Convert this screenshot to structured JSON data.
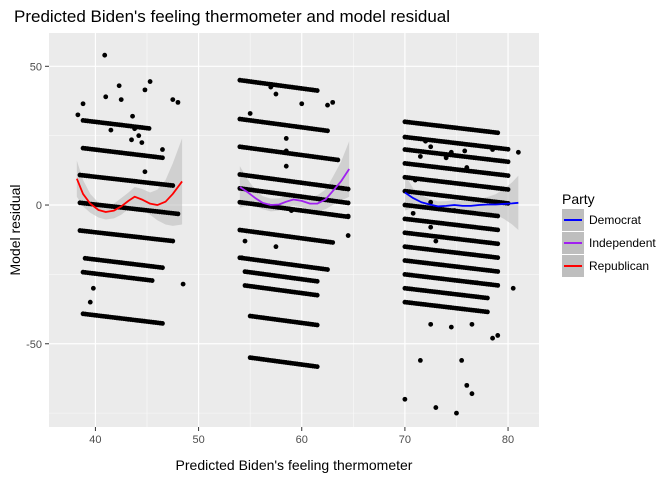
{
  "chart_data": {
    "type": "scatter",
    "title": "Predicted Biden's feeling thermometer and model residual",
    "xlabel": "Predicted Biden's feeling thermometer",
    "ylabel": "Model residual",
    "xlim": [
      35.5,
      83
    ],
    "ylim": [
      -80,
      62
    ],
    "x_ticks": [
      40,
      50,
      60,
      70,
      80
    ],
    "y_ticks": [
      -50,
      0,
      50
    ],
    "x_tick_labels": [
      "40",
      "50",
      "60",
      "70",
      "80"
    ],
    "y_tick_labels": [
      "-50",
      "0",
      "50"
    ],
    "grid": true,
    "legend": {
      "title": "Party",
      "position": "right",
      "entries": [
        {
          "name": "Democrat",
          "color": "#0000ff"
        },
        {
          "name": "Independent",
          "color": "#a020f0"
        },
        {
          "name": "Republican",
          "color": "#ff0000"
        }
      ]
    },
    "point_color": "#000000",
    "ribbon_color": "#bebebe",
    "point_bands": [
      {
        "group": "Republican",
        "x0": 38.8,
        "x1": 45.2,
        "y0": 30.5,
        "slope": -0.45
      },
      {
        "group": "Republican",
        "x0": 38.8,
        "x1": 46.5,
        "y0": 20.5,
        "slope": -0.45
      },
      {
        "group": "Republican",
        "x0": 38.5,
        "x1": 47.5,
        "y0": 10.8,
        "slope": -0.42
      },
      {
        "group": "Republican",
        "x0": 38.5,
        "x1": 48.0,
        "y0": 0.8,
        "slope": -0.42
      },
      {
        "group": "Republican",
        "x0": 38.5,
        "x1": 47.5,
        "y0": -9.2,
        "slope": -0.42
      },
      {
        "group": "Republican",
        "x0": 39.0,
        "x1": 46.5,
        "y0": -19.2,
        "slope": -0.45
      },
      {
        "group": "Republican",
        "x0": 38.8,
        "x1": 45.5,
        "y0": -24.2,
        "slope": -0.45
      },
      {
        "group": "Republican",
        "x0": 38.8,
        "x1": 46.5,
        "y0": -39.2,
        "slope": -0.45
      },
      {
        "group": "Independent",
        "x0": 54.0,
        "x1": 61.5,
        "y0": 45.0,
        "slope": -0.5
      },
      {
        "group": "Independent",
        "x0": 54.0,
        "x1": 62.5,
        "y0": 31.0,
        "slope": -0.5
      },
      {
        "group": "Independent",
        "x0": 54.0,
        "x1": 63.5,
        "y0": 21.0,
        "slope": -0.5
      },
      {
        "group": "Independent",
        "x0": 54.0,
        "x1": 64.5,
        "y0": 11.0,
        "slope": -0.5
      },
      {
        "group": "Independent",
        "x0": 54.0,
        "x1": 64.5,
        "y0": 6.0,
        "slope": -0.5
      },
      {
        "group": "Independent",
        "x0": 54.0,
        "x1": 64.5,
        "y0": 1.0,
        "slope": -0.5
      },
      {
        "group": "Independent",
        "x0": 54.0,
        "x1": 63.0,
        "y0": -9.0,
        "slope": -0.5
      },
      {
        "group": "Independent",
        "x0": 54.0,
        "x1": 62.5,
        "y0": -19.0,
        "slope": -0.5
      },
      {
        "group": "Independent",
        "x0": 54.5,
        "x1": 61.5,
        "y0": -24.0,
        "slope": -0.5
      },
      {
        "group": "Independent",
        "x0": 54.5,
        "x1": 61.5,
        "y0": -29.0,
        "slope": -0.5
      },
      {
        "group": "Independent",
        "x0": 55.0,
        "x1": 61.5,
        "y0": -40.0,
        "slope": -0.5
      },
      {
        "group": "Independent",
        "x0": 55.0,
        "x1": 61.5,
        "y0": -55.0,
        "slope": -0.5
      },
      {
        "group": "Democrat",
        "x0": 70.0,
        "x1": 79.0,
        "y0": 30.0,
        "slope": -0.44
      },
      {
        "group": "Democrat",
        "x0": 70.0,
        "x1": 80.0,
        "y0": 24.5,
        "slope": -0.44
      },
      {
        "group": "Democrat",
        "x0": 70.0,
        "x1": 80.0,
        "y0": 20.0,
        "slope": -0.44
      },
      {
        "group": "Democrat",
        "x0": 70.0,
        "x1": 80.0,
        "y0": 15.0,
        "slope": -0.44
      },
      {
        "group": "Democrat",
        "x0": 70.0,
        "x1": 80.0,
        "y0": 10.0,
        "slope": -0.44
      },
      {
        "group": "Democrat",
        "x0": 70.0,
        "x1": 80.0,
        "y0": 5.0,
        "slope": -0.44
      },
      {
        "group": "Democrat",
        "x0": 70.0,
        "x1": 79.0,
        "y0": 0.0,
        "slope": -0.44
      },
      {
        "group": "Democrat",
        "x0": 70.0,
        "x1": 79.0,
        "y0": -5.0,
        "slope": -0.44
      },
      {
        "group": "Democrat",
        "x0": 70.0,
        "x1": 79.0,
        "y0": -10.0,
        "slope": -0.44
      },
      {
        "group": "Democrat",
        "x0": 70.0,
        "x1": 79.0,
        "y0": -15.0,
        "slope": -0.44
      },
      {
        "group": "Democrat",
        "x0": 70.0,
        "x1": 79.0,
        "y0": -20.0,
        "slope": -0.44
      },
      {
        "group": "Democrat",
        "x0": 70.0,
        "x1": 79.0,
        "y0": -25.0,
        "slope": -0.44
      },
      {
        "group": "Democrat",
        "x0": 70.0,
        "x1": 78.0,
        "y0": -30.0,
        "slope": -0.44
      },
      {
        "group": "Democrat",
        "x0": 70.0,
        "x1": 78.0,
        "y0": -35.0,
        "slope": -0.44
      }
    ],
    "outliers": [
      {
        "x": 40.9,
        "y": 54
      },
      {
        "x": 38.8,
        "y": 36.5
      },
      {
        "x": 38.3,
        "y": 32.5
      },
      {
        "x": 41.5,
        "y": 27
      },
      {
        "x": 45.3,
        "y": 44.5
      },
      {
        "x": 44.8,
        "y": 41.5
      },
      {
        "x": 42.5,
        "y": 38
      },
      {
        "x": 43.6,
        "y": 32
      },
      {
        "x": 43.8,
        "y": 27.5
      },
      {
        "x": 43.5,
        "y": 23.5
      },
      {
        "x": 44.2,
        "y": 25
      },
      {
        "x": 44.5,
        "y": 22.5
      },
      {
        "x": 47.5,
        "y": 38
      },
      {
        "x": 48.0,
        "y": 37
      },
      {
        "x": 42.3,
        "y": 43
      },
      {
        "x": 41.0,
        "y": 39
      },
      {
        "x": 46.5,
        "y": 20
      },
      {
        "x": 44.8,
        "y": 12
      },
      {
        "x": 39.8,
        "y": -30
      },
      {
        "x": 39.5,
        "y": -35
      },
      {
        "x": 48.5,
        "y": -28.5
      },
      {
        "x": 54.2,
        "y": -19
      },
      {
        "x": 54.5,
        "y": -13
      },
      {
        "x": 55.0,
        "y": 33
      },
      {
        "x": 58.5,
        "y": 24
      },
      {
        "x": 58.5,
        "y": 14
      },
      {
        "x": 59.0,
        "y": -2
      },
      {
        "x": 57.5,
        "y": -15
      },
      {
        "x": 58.5,
        "y": 19.5
      },
      {
        "x": 64.0,
        "y": 6
      },
      {
        "x": 64.5,
        "y": -4
      },
      {
        "x": 64.5,
        "y": -11
      },
      {
        "x": 60.0,
        "y": 36.5
      },
      {
        "x": 62.5,
        "y": 36
      },
      {
        "x": 63.0,
        "y": 37
      },
      {
        "x": 57.0,
        "y": 42.5
      },
      {
        "x": 57.5,
        "y": 40
      },
      {
        "x": 70.0,
        "y": -70
      },
      {
        "x": 71.5,
        "y": -56
      },
      {
        "x": 73.0,
        "y": -73
      },
      {
        "x": 75.0,
        "y": -75
      },
      {
        "x": 75.5,
        "y": -56
      },
      {
        "x": 76.0,
        "y": -65
      },
      {
        "x": 76.5,
        "y": -68
      },
      {
        "x": 76.5,
        "y": -43
      },
      {
        "x": 72.5,
        "y": -43
      },
      {
        "x": 74.5,
        "y": -44
      },
      {
        "x": 71.0,
        "y": 9
      },
      {
        "x": 71.5,
        "y": 17.5
      },
      {
        "x": 72.5,
        "y": 21
      },
      {
        "x": 72.0,
        "y": 23
      },
      {
        "x": 74.0,
        "y": 17
      },
      {
        "x": 74.5,
        "y": 19
      },
      {
        "x": 75.8,
        "y": 19.5
      },
      {
        "x": 76.0,
        "y": 13.5
      },
      {
        "x": 72.5,
        "y": -8
      },
      {
        "x": 73.0,
        "y": -13
      },
      {
        "x": 77.0,
        "y": -28
      },
      {
        "x": 78.5,
        "y": -48
      },
      {
        "x": 79.0,
        "y": -47
      },
      {
        "x": 78.5,
        "y": 20
      },
      {
        "x": 80.5,
        "y": -30
      },
      {
        "x": 81.0,
        "y": 19
      },
      {
        "x": 72.5,
        "y": 1
      },
      {
        "x": 70.8,
        "y": -3
      },
      {
        "x": 74.8,
        "y": -2
      }
    ],
    "series": [
      {
        "name": "Republican",
        "color": "#ff0000",
        "x": [
          38.2,
          38.8,
          39.5,
          40.3,
          41.0,
          41.8,
          42.5,
          43.2,
          43.8,
          44.5,
          45.3,
          46.0,
          46.8,
          47.5,
          48.4
        ],
        "y": [
          9.5,
          4.0,
          0.5,
          -1.8,
          -2.5,
          -2.0,
          -0.5,
          1.5,
          3.0,
          2.0,
          0.5,
          0.0,
          1.2,
          4.0,
          8.5
        ],
        "lower": [
          3.0,
          -0.5,
          -2.8,
          -4.5,
          -5.2,
          -4.8,
          -3.5,
          -1.5,
          -0.5,
          -1.8,
          -3.5,
          -5.5,
          -7.0,
          -7.5,
          -7.0
        ],
        "upper": [
          16.0,
          9.0,
          4.0,
          0.8,
          0.0,
          0.5,
          2.5,
          4.5,
          6.5,
          5.8,
          4.5,
          5.5,
          9.0,
          15.0,
          24.0
        ]
      },
      {
        "name": "Independent",
        "color": "#a020f0",
        "x": [
          54.0,
          54.8,
          55.5,
          56.2,
          57.0,
          57.8,
          58.5,
          59.2,
          60.0,
          60.8,
          61.5,
          62.3,
          63.0,
          63.8,
          64.6
        ],
        "y": [
          6.5,
          4.5,
          2.5,
          0.8,
          0.0,
          0.2,
          1.2,
          2.0,
          1.5,
          0.5,
          0.5,
          2.0,
          5.0,
          8.5,
          13.0
        ],
        "lower": [
          -1.0,
          0.0,
          -0.5,
          -1.5,
          -2.3,
          -2.0,
          -1.0,
          -0.2,
          -0.8,
          -2.0,
          -2.5,
          -1.5,
          0.0,
          1.5,
          3.0
        ],
        "upper": [
          14.0,
          9.0,
          5.5,
          3.2,
          2.3,
          2.4,
          3.4,
          4.2,
          3.8,
          3.0,
          3.5,
          5.5,
          10.0,
          15.5,
          23.0
        ]
      },
      {
        "name": "Democrat",
        "color": "#0000ff",
        "x": [
          70.0,
          70.8,
          71.6,
          72.4,
          73.2,
          74.0,
          74.8,
          75.6,
          76.4,
          77.2,
          78.0,
          78.8,
          79.6,
          80.4,
          81.0
        ],
        "y": [
          4.5,
          2.5,
          1.0,
          0.2,
          -0.5,
          -0.3,
          0.0,
          -0.3,
          -0.3,
          0.0,
          0.2,
          0.2,
          0.4,
          0.6,
          0.8
        ],
        "lower": [
          -2.0,
          -1.0,
          -1.5,
          -1.8,
          -2.3,
          -2.0,
          -1.8,
          -2.0,
          -2.2,
          -2.2,
          -2.5,
          -3.5,
          -5.0,
          -7.0,
          -9.0
        ],
        "upper": [
          11.0,
          6.0,
          3.5,
          2.2,
          1.3,
          1.4,
          1.8,
          1.4,
          1.6,
          2.2,
          2.9,
          3.9,
          5.8,
          8.2,
          10.6
        ]
      }
    ]
  }
}
